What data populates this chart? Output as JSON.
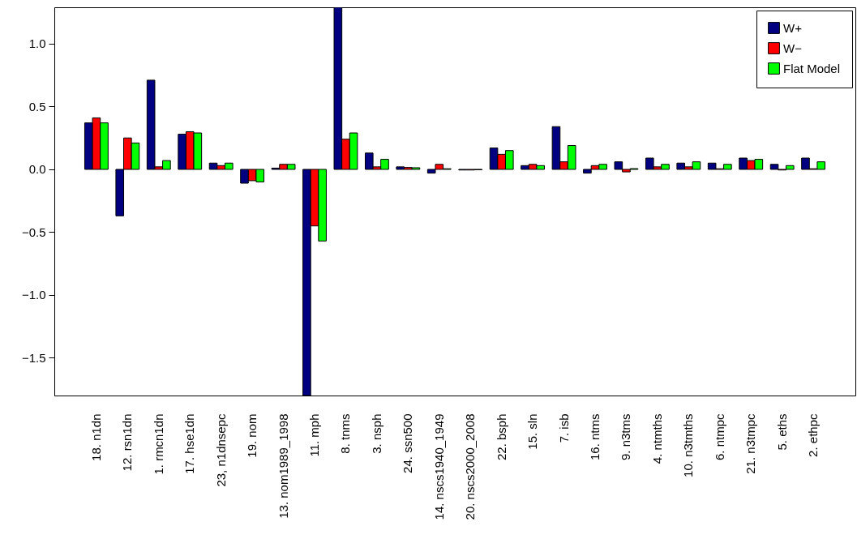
{
  "chart_data": {
    "type": "bar",
    "categories": [
      "18. n1dn",
      "12. rsn1dn",
      "1. rmcn1dn",
      "17. hse1dn",
      "23, n1dnsepc",
      "19. nom",
      "13. nom1989_1998",
      "11. mph",
      "8. tnms",
      "3. nsph",
      "24. ssn500",
      "14. nscs1940_1949",
      "20. nscs2000_2008",
      "22. bsph",
      "15. sln",
      "7. isb",
      "16. ntms",
      "9. n3tms",
      "4. ntmths",
      "10. n3tmths",
      "6. ntmpc",
      "21. n3tmpc",
      "5. eths",
      "2. ethpc"
    ],
    "series": [
      {
        "name": "W+",
        "color": "#000080",
        "values": [
          0.37,
          -0.37,
          0.71,
          0.28,
          0.05,
          -0.11,
          0.01,
          -1.8,
          1.29,
          0.13,
          0.02,
          -0.03,
          -0.005,
          0.17,
          0.03,
          0.34,
          -0.03,
          0.06,
          0.09,
          0.05,
          0.05,
          0.09,
          0.04,
          0.09
        ]
      },
      {
        "name": "W−",
        "color": "#ff0000",
        "values": [
          0.41,
          0.25,
          0.02,
          0.3,
          0.03,
          -0.09,
          0.04,
          -0.45,
          0.24,
          0.02,
          0.015,
          0.04,
          -0.005,
          0.12,
          0.04,
          0.06,
          0.03,
          -0.02,
          0.02,
          0.02,
          0.005,
          0.07,
          -0.005,
          0.005
        ]
      },
      {
        "name": "Flat Model",
        "color": "#00ff00",
        "values": [
          0.37,
          0.21,
          0.07,
          0.29,
          0.05,
          -0.1,
          0.04,
          -0.57,
          0.29,
          0.08,
          0.013,
          0.005,
          -0.003,
          0.15,
          0.03,
          0.19,
          0.04,
          0.006,
          0.04,
          0.06,
          0.04,
          0.08,
          0.03,
          0.06
        ]
      }
    ],
    "ylim": [
      -1.8,
      1.29
    ],
    "yticks": [
      {
        "value": -1.5,
        "label": "−1.5"
      },
      {
        "value": -1,
        "label": "−1.0"
      },
      {
        "value": -0.5,
        "label": "−0.5"
      },
      {
        "value": 0,
        "label": "0.0"
      },
      {
        "value": 0.5,
        "label": "0.5"
      },
      {
        "value": 1,
        "label": "1.0"
      }
    ],
    "grid": false,
    "legend": "top right"
  }
}
